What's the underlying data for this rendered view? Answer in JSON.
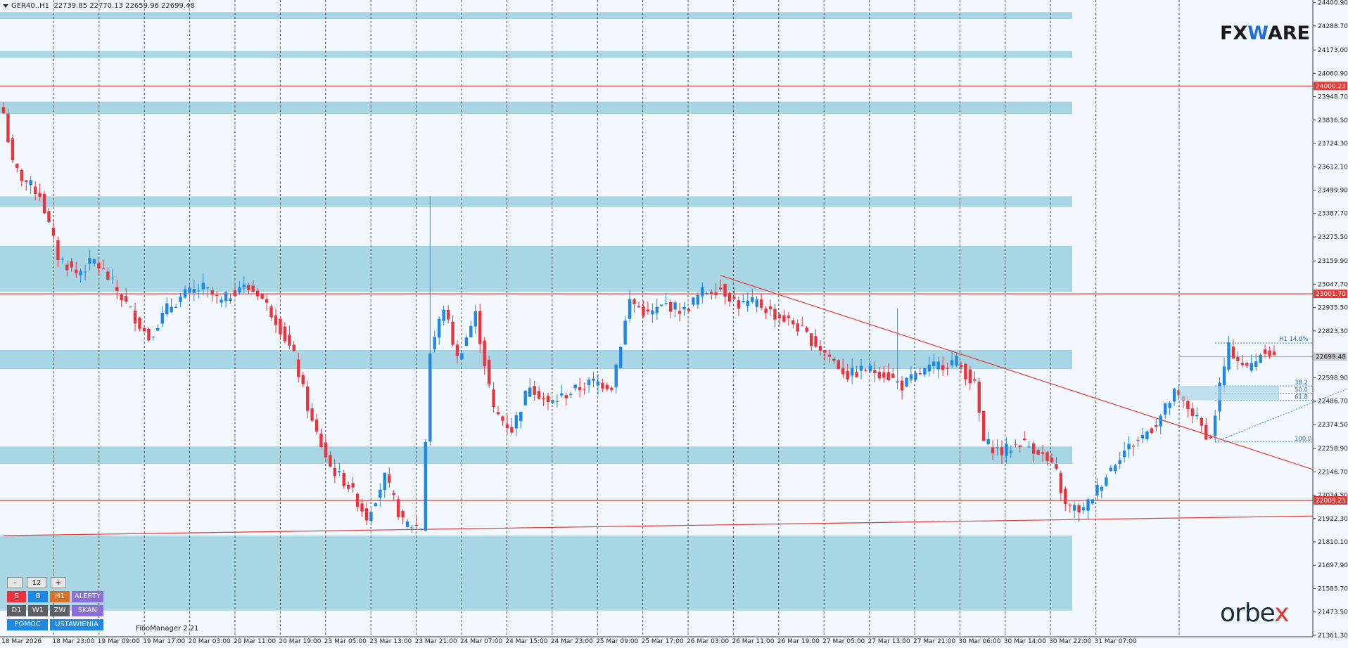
{
  "header": {
    "symbol": "GER40..H1",
    "ohlc": "22739.85 22770.13 22659.96 22699.48",
    "indicator": "FiboManager 2.21"
  },
  "logos": {
    "fxware_pre": "FX",
    "fxware_w": "W",
    "fxware_post": "ARE",
    "orbex_pre": "orbe",
    "orbex_x": "x"
  },
  "panel": {
    "minus": "-",
    "value": "12",
    "plus": "+",
    "sell": "S",
    "buy": "B",
    "tf_h1": "H1",
    "alerts": "ALERTY",
    "tf_d1": "D1",
    "tf_w1": "W1",
    "zw": "ZW",
    "scan": "SKAN",
    "help": "POMOC",
    "settings": "USTAWIENIA"
  },
  "colors": {
    "background": "#f2f8fd",
    "bull": "#1e88e5",
    "bear": "#e8343f",
    "zone": "#a9d6e5",
    "level_line": "#e53935",
    "grid": "#1b1b1b"
  },
  "chart_data": {
    "type": "candlestick",
    "ylim": [
      21361,
      24420
    ],
    "y_ticks": [
      "24400.90",
      "24288.70",
      "24173.00",
      "24060.90",
      "23948.70",
      "23836.50",
      "23724.30",
      "23612.10",
      "23499.90",
      "23387.70",
      "23275.50",
      "23159.90",
      "23047.70",
      "22935.50",
      "22823.30",
      "22598.90",
      "22486.70",
      "22374.50",
      "22258.90",
      "22146.70",
      "22034.50",
      "21922.30",
      "21810.10",
      "21697.90",
      "21585.70",
      "21473.50",
      "21361.30"
    ],
    "x_labels": [
      "18 Mar 2026",
      "18 Mar 23:00",
      "19 Mar 09:00",
      "19 Mar 17:00",
      "20 Mar 03:00",
      "20 Mar 11:00",
      "20 Mar 19:00",
      "23 Mar 05:00",
      "23 Mar 13:00",
      "23 Mar 21:00",
      "24 Mar 07:00",
      "24 Mar 15:00",
      "24 Mar 23:00",
      "25 Mar 09:00",
      "25 Mar 17:00",
      "26 Mar 03:00",
      "26 Mar 11:00",
      "26 Mar 19:00",
      "27 Mar 05:00",
      "27 Mar 13:00",
      "27 Mar 21:00",
      "30 Mar 06:00",
      "30 Mar 14:00",
      "30 Mar 22:00",
      "31 Mar 07:00"
    ],
    "price_labels": [
      {
        "value": 24000.23,
        "text": "24000.23",
        "kind": "red"
      },
      {
        "value": 23001.7,
        "text": "23001.70",
        "kind": "red"
      },
      {
        "value": 22699.48,
        "text": "22699.48",
        "kind": "grey"
      },
      {
        "value": 22009.21,
        "text": "22009.21",
        "kind": "red"
      }
    ],
    "horizontal_lines": [
      24000.23,
      23001.7,
      22009.21
    ],
    "zones": [
      {
        "from_bar": 0,
        "to_bar": -1,
        "low": 24322,
        "high": 24355
      },
      {
        "from_bar": 0,
        "to_bar": -1,
        "low": 24135,
        "high": 24168
      },
      {
        "from_bar": 0,
        "to_bar": -1,
        "low": 23866,
        "high": 23925
      },
      {
        "from_bar": 0,
        "to_bar": -1,
        "low": 23420,
        "high": 23470
      },
      {
        "from_bar": 0,
        "to_bar": 330,
        "low": 23012,
        "high": 23232
      },
      {
        "from_bar": 0,
        "to_bar": -1,
        "low": 22640,
        "high": 22732
      },
      {
        "from_bar": 0,
        "to_bar": -1,
        "low": 22185,
        "high": 22268
      },
      {
        "from_bar": 0,
        "to_bar": 262,
        "low": 21480,
        "high": 21840
      },
      {
        "from_bar": 267,
        "to_bar": 321,
        "low": 22462,
        "high": 22573
      }
    ],
    "trendlines": [
      {
        "from": [
          0,
          21840
        ],
        "to": [
          330,
          21948
        ]
      },
      {
        "from": [
          158,
          23090
        ],
        "to": [
          330,
          21862
        ]
      }
    ],
    "fibonacci": {
      "label": "H1 14.6%",
      "bar_start": 267,
      "bar_end": 321,
      "levels": [
        {
          "ratio": "38.2",
          "value": 22559
        },
        {
          "ratio": "50.0",
          "value": 22524
        },
        {
          "ratio": "61.8",
          "value": 22490
        },
        {
          "ratio": "100.0",
          "value": 22290
        }
      ],
      "top_value": 22765,
      "bottom_value": 22290
    },
    "candles_note": "close series sampled per 4 bars",
    "anchors": [
      [
        0,
        23870
      ],
      [
        2,
        23620
      ],
      [
        4,
        23560
      ],
      [
        8,
        23480
      ],
      [
        12,
        23180
      ],
      [
        16,
        23100
      ],
      [
        20,
        23160
      ],
      [
        24,
        23050
      ],
      [
        28,
        22920
      ],
      [
        32,
        22790
      ],
      [
        36,
        22930
      ],
      [
        40,
        23000
      ],
      [
        44,
        23030
      ],
      [
        48,
        22960
      ],
      [
        52,
        23040
      ],
      [
        56,
        23010
      ],
      [
        60,
        22880
      ],
      [
        64,
        22700
      ],
      [
        68,
        22380
      ],
      [
        72,
        22170
      ],
      [
        76,
        22080
      ],
      [
        80,
        21930
      ],
      [
        84,
        22120
      ],
      [
        88,
        21900
      ],
      [
        92,
        21880
      ],
      [
        94,
        22720
      ],
      [
        97,
        22940
      ],
      [
        100,
        22690
      ],
      [
        104,
        22900
      ],
      [
        108,
        22440
      ],
      [
        112,
        22350
      ],
      [
        116,
        22570
      ],
      [
        120,
        22470
      ],
      [
        124,
        22520
      ],
      [
        128,
        22560
      ],
      [
        130,
        22580
      ],
      [
        134,
        22560
      ],
      [
        138,
        22970
      ],
      [
        142,
        22900
      ],
      [
        146,
        22950
      ],
      [
        150,
        22920
      ],
      [
        154,
        23010
      ],
      [
        158,
        23030
      ],
      [
        162,
        22950
      ],
      [
        166,
        22960
      ],
      [
        170,
        22900
      ],
      [
        174,
        22860
      ],
      [
        178,
        22780
      ],
      [
        182,
        22700
      ],
      [
        186,
        22610
      ],
      [
        190,
        22640
      ],
      [
        194,
        22620
      ],
      [
        198,
        22560
      ],
      [
        202,
        22620
      ],
      [
        206,
        22660
      ],
      [
        210,
        22680
      ],
      [
        214,
        22560
      ],
      [
        216,
        22290
      ],
      [
        220,
        22240
      ],
      [
        224,
        22290
      ],
      [
        228,
        22250
      ],
      [
        232,
        22140
      ],
      [
        234,
        21980
      ],
      [
        238,
        21960
      ],
      [
        242,
        22100
      ],
      [
        246,
        22230
      ],
      [
        250,
        22300
      ],
      [
        254,
        22380
      ],
      [
        258,
        22520
      ],
      [
        262,
        22430
      ],
      [
        264,
        22360
      ],
      [
        266,
        22300
      ],
      [
        268,
        22560
      ],
      [
        270,
        22740
      ],
      [
        274,
        22640
      ],
      [
        278,
        22740
      ],
      [
        280,
        22700
      ]
    ]
  }
}
